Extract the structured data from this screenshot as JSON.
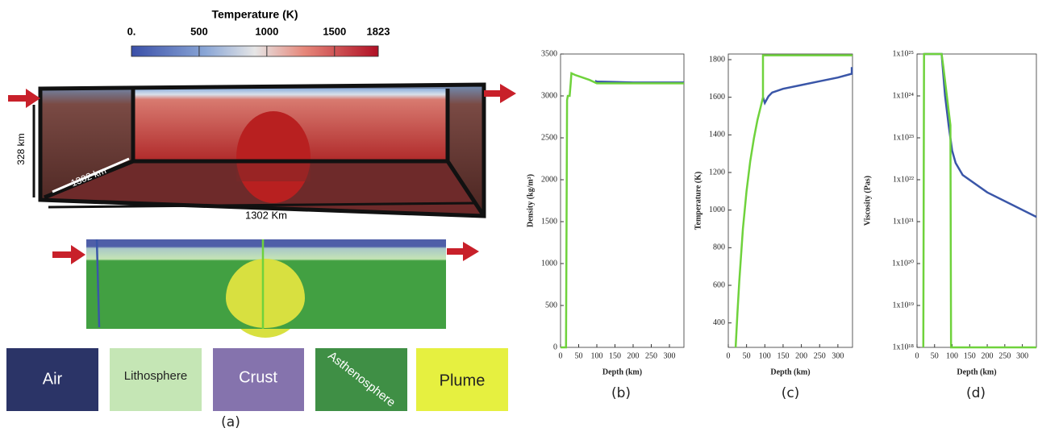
{
  "panel_a": {
    "colorbar": {
      "title": "Temperature (K)",
      "ticks": [
        {
          "value": 0,
          "label": "0."
        },
        500,
        1000,
        1500,
        1823
      ]
    },
    "dimensions": [
      "328 km",
      "1302 km",
      "1302 Km"
    ],
    "legend": [
      "Air",
      "Lithosphere",
      "Crust",
      "Asthenosphere",
      "Plume"
    ],
    "caption": "(a)"
  },
  "chart_data": [
    {
      "type": "line",
      "caption": "(b)",
      "x_label": "Depth (km)",
      "y_label": "Density (kg/m³)",
      "xlim": [
        0,
        340
      ],
      "xticks": [
        0,
        50,
        100,
        150,
        200,
        250,
        300
      ],
      "ylim": [
        0,
        3500
      ],
      "yticks": [
        0,
        500,
        1000,
        1500,
        2000,
        2500,
        3000,
        3500
      ],
      "log": false,
      "series": [
        {
          "color": "#3a56a8",
          "x": [
            95,
            100,
            150,
            200,
            250,
            340
          ],
          "values": [
            3180,
            3170,
            3165,
            3160,
            3160,
            3160
          ]
        },
        {
          "color": "#6fd23c",
          "x": [
            0,
            15,
            18,
            20,
            25,
            28,
            30,
            40,
            60,
            80,
            95,
            100,
            150,
            200,
            250,
            340
          ],
          "values": [
            0,
            0,
            2950,
            3000,
            3000,
            3150,
            3270,
            3250,
            3220,
            3190,
            3160,
            3150,
            3150,
            3150,
            3150,
            3150
          ]
        }
      ]
    },
    {
      "type": "line",
      "caption": "(c)",
      "x_label": "Depth (km)",
      "y_label": "Temperature (K)",
      "xlim": [
        0,
        340
      ],
      "xticks": [
        0,
        50,
        100,
        150,
        200,
        250,
        300
      ],
      "ylim": [
        270,
        1830
      ],
      "yticks": [
        400,
        600,
        800,
        1000,
        1200,
        1400,
        1600,
        1800
      ],
      "log": false,
      "series": [
        {
          "color": "#3a56a8",
          "x": [
            95,
            100,
            110,
            120,
            150,
            200,
            250,
            300,
            338,
            338
          ],
          "values": [
            1600,
            1570,
            1605,
            1625,
            1645,
            1665,
            1685,
            1705,
            1725,
            1760
          ]
        },
        {
          "color": "#6fd23c",
          "x": [
            20,
            25,
            30,
            40,
            50,
            60,
            70,
            80,
            90,
            95,
            95,
            100,
            150,
            200,
            250,
            340
          ],
          "values": [
            270,
            450,
            620,
            900,
            1100,
            1260,
            1380,
            1480,
            1560,
            1600,
            1823,
            1823,
            1823,
            1823,
            1823,
            1823
          ]
        }
      ]
    },
    {
      "type": "line",
      "caption": "(d)",
      "x_label": "Depth (km)",
      "y_label": "Viscosity (Pas)",
      "xlim": [
        0,
        340
      ],
      "xticks": [
        0,
        50,
        100,
        150,
        200,
        250,
        300
      ],
      "ylim": [
        1e+18,
        1e+25
      ],
      "log": true,
      "yticks": [
        {
          "value": 1e+18,
          "label": "1x10¹⁸"
        },
        {
          "value": 1e+19,
          "label": "1x10¹⁹"
        },
        {
          "value": 1e+20,
          "label": "1x10²⁰"
        },
        {
          "value": 1e+21,
          "label": "1x10²¹"
        },
        {
          "value": 1e+22,
          "label": "1x10²²"
        },
        {
          "value": 1e+23,
          "label": "1x10²³"
        },
        {
          "value": 1e+24,
          "label": "1x10²⁴"
        },
        {
          "value": 1e+25,
          "label": "1x10²⁵"
        }
      ],
      "series": [
        {
          "color": "#3a56a8",
          "x": [
            20,
            70,
            80,
            90,
            100,
            110,
            130,
            200,
            340
          ],
          "values": [
            1e+25,
            1e+25,
            1e+24,
            2e+23,
            5e+22,
            2.5e+22,
            1.3e+22,
            5e+21,
            1.3e+21
          ]
        },
        {
          "color": "#6fd23c",
          "x": [
            18,
            20,
            70,
            75,
            85,
            95,
            97,
            100,
            200,
            340
          ],
          "values": [
            1e+18,
            1e+25,
            1e+25,
            5e+24,
            1e+24,
            2e+23,
            1e+18,
            1e+18,
            1e+18,
            1e+18
          ]
        }
      ]
    }
  ]
}
